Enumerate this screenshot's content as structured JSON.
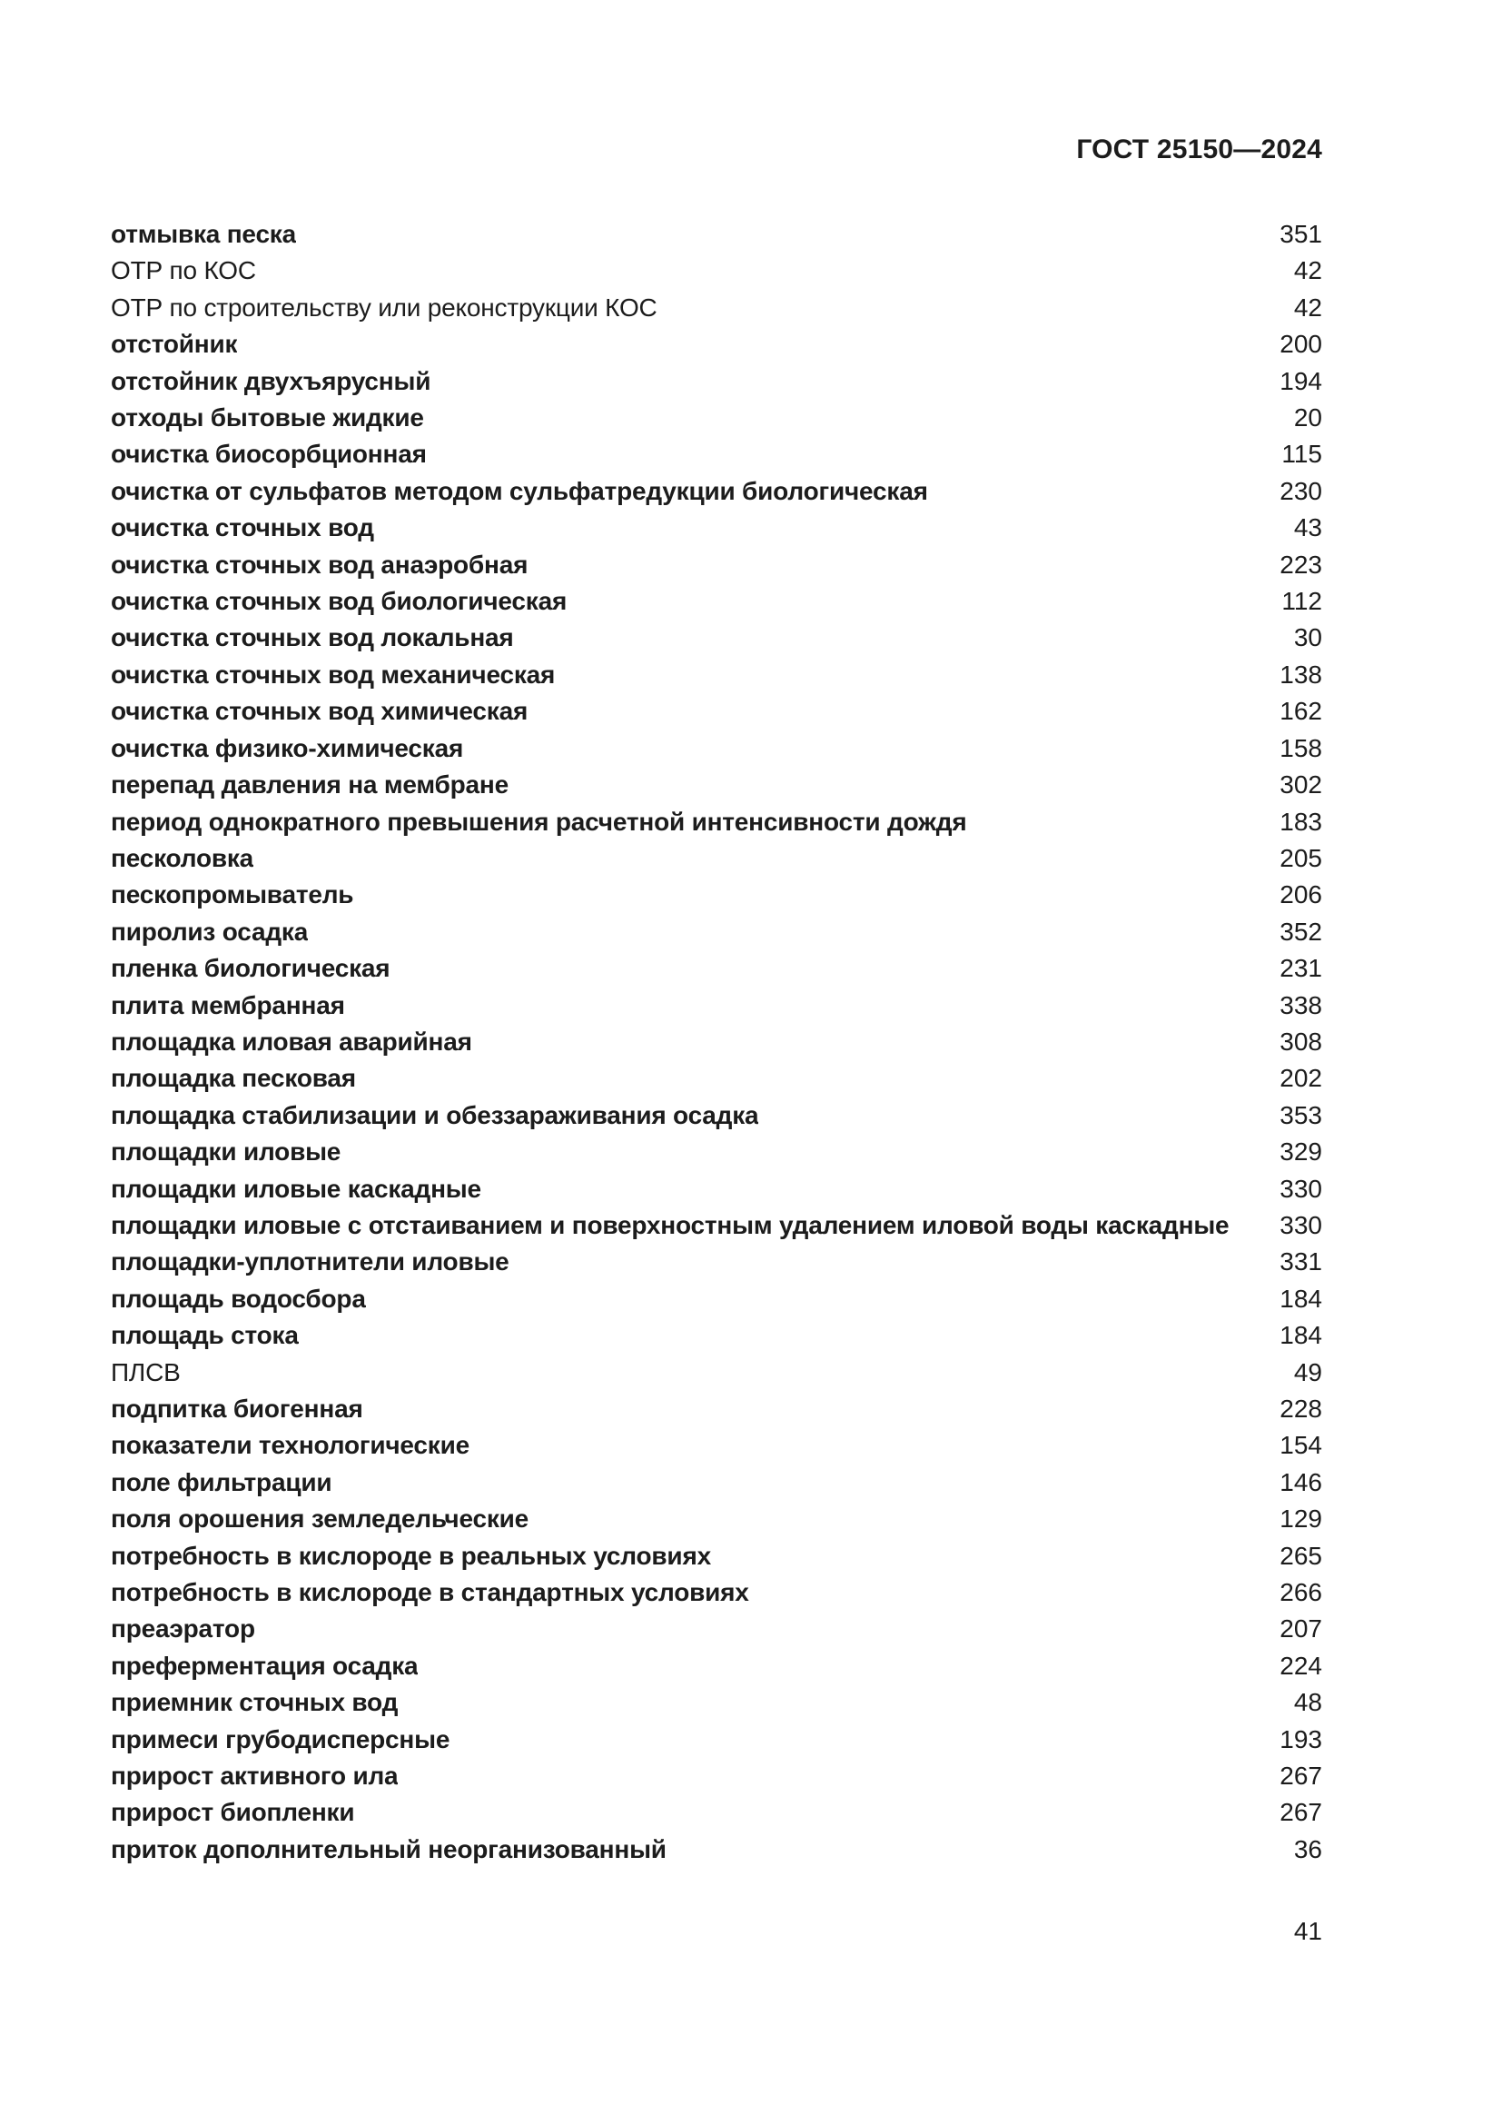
{
  "header": {
    "title": "ГОСТ 25150—2024"
  },
  "footer": {
    "page_number": "41"
  },
  "index": {
    "entries": [
      {
        "term": "отмывка песка",
        "page": "351",
        "bold": true
      },
      {
        "term": "ОТР по КОС",
        "page": "42",
        "bold": false
      },
      {
        "term": "ОТР по строительству или реконструкции КОС",
        "page": "42",
        "bold": false
      },
      {
        "term": "отстойник",
        "page": "200",
        "bold": true
      },
      {
        "term": "отстойник двухъярусный",
        "page": "194",
        "bold": true
      },
      {
        "term": "отходы бытовые жидкие",
        "page": "20",
        "bold": true
      },
      {
        "term": "очистка биосорбционная",
        "page": "115",
        "bold": true
      },
      {
        "term": "очистка от сульфатов методом сульфатредукции биологическая",
        "page": "230",
        "bold": true
      },
      {
        "term": "очистка сточных вод",
        "page": "43",
        "bold": true
      },
      {
        "term": "очистка сточных вод анаэробная",
        "page": "223",
        "bold": true
      },
      {
        "term": "очистка сточных вод биологическая",
        "page": "112",
        "bold": true
      },
      {
        "term": "очистка сточных вод локальная",
        "page": "30",
        "bold": true
      },
      {
        "term": "очистка сточных вод механическая",
        "page": "138",
        "bold": true
      },
      {
        "term": "очистка сточных вод химическая",
        "page": "162",
        "bold": true
      },
      {
        "term": "очистка физико-химическая",
        "page": "158",
        "bold": true
      },
      {
        "term": "перепад давления на мембране",
        "page": "302",
        "bold": true
      },
      {
        "term": "период однократного превышения расчетной интенсивности дождя",
        "page": "183",
        "bold": true
      },
      {
        "term": "песколовка",
        "page": "205",
        "bold": true
      },
      {
        "term": "пескопромыватель",
        "page": "206",
        "bold": true
      },
      {
        "term": "пиролиз осадка",
        "page": "352",
        "bold": true
      },
      {
        "term": "пленка биологическая",
        "page": "231",
        "bold": true
      },
      {
        "term": "плита мембранная",
        "page": "338",
        "bold": true
      },
      {
        "term": "площадка иловая аварийная",
        "page": "308",
        "bold": true
      },
      {
        "term": "площадка песковая",
        "page": "202",
        "bold": true
      },
      {
        "term": "площадка стабилизации и обеззараживания осадка",
        "page": "353",
        "bold": true
      },
      {
        "term": "площадки иловые",
        "page": "329",
        "bold": true
      },
      {
        "term": "площадки иловые каскадные",
        "page": "330",
        "bold": true
      },
      {
        "term": "площадки иловые с отстаиванием и поверхностным удалением иловой воды каскадные",
        "page": "330",
        "bold": true
      },
      {
        "term": "площадки-уплотнители иловые",
        "page": "331",
        "bold": true
      },
      {
        "term": "площадь водосбора",
        "page": "184",
        "bold": true
      },
      {
        "term": "площадь стока",
        "page": "184",
        "bold": true
      },
      {
        "term": "ПЛСВ",
        "page": "49",
        "bold": false
      },
      {
        "term": "подпитка биогенная",
        "page": "228",
        "bold": true
      },
      {
        "term": "показатели технологические",
        "page": "154",
        "bold": true
      },
      {
        "term": "поле фильтрации",
        "page": "146",
        "bold": true
      },
      {
        "term": "поля орошения земледельческие",
        "page": "129",
        "bold": true
      },
      {
        "term": "потребность в кислороде в реальных условиях",
        "page": "265",
        "bold": true
      },
      {
        "term": "потребность в кислороде в стандартных условиях",
        "page": "266",
        "bold": true
      },
      {
        "term": "преаэратор",
        "page": "207",
        "bold": true
      },
      {
        "term": "преферментация осадка",
        "page": "224",
        "bold": true
      },
      {
        "term": "приемник сточных вод",
        "page": "48",
        "bold": true
      },
      {
        "term": "примеси грубодисперсные",
        "page": "193",
        "bold": true
      },
      {
        "term": "прирост активного ила",
        "page": "267",
        "bold": true
      },
      {
        "term": "прирост биопленки",
        "page": "267",
        "bold": true
      },
      {
        "term": "приток дополнительный неорганизованный",
        "page": "36",
        "bold": true
      }
    ]
  }
}
